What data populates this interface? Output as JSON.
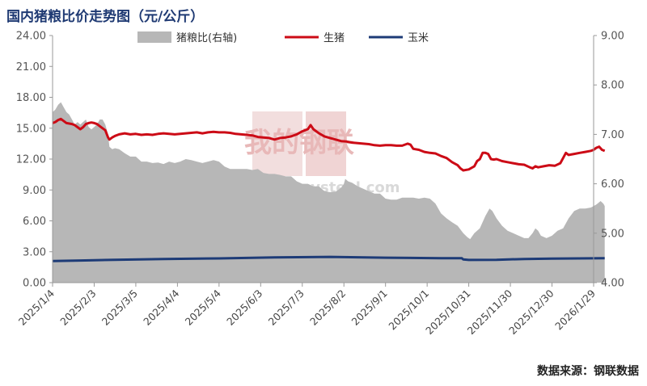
{
  "header": {
    "title": "国内猪粮比价走势图（元/公斤）"
  },
  "footer": {
    "source": "数据来源：钢联数据"
  },
  "watermark": {
    "brand": "我的钢联",
    "site": "mysteel.com"
  },
  "colors": {
    "area": "#b7b7b7",
    "hog": "#cc0b16",
    "corn": "#1d3b77",
    "title": "#1f3a73"
  },
  "chart_data": {
    "type": "line",
    "title": "国内猪粮比价走势图（元/公斤）",
    "x_ticks": [
      "2025/1/4",
      "2025/2/3",
      "2025/3/5",
      "2025/4/4",
      "2025/5/4",
      "2025/6/3",
      "2025/7/3",
      "2025/8/2",
      "2025/9/1",
      "2025/10/1",
      "2025/10/31",
      "2025/11/30",
      "2025/12/30",
      "2026/1/29"
    ],
    "y_left": {
      "range": [
        0,
        24
      ],
      "ticks": [
        "0.00",
        "3.00",
        "6.00",
        "9.00",
        "12.00",
        "15.00",
        "18.00",
        "21.00",
        "24.00"
      ]
    },
    "y_right": {
      "range": [
        4,
        9
      ],
      "ticks": [
        "4.00",
        "5.00",
        "6.00",
        "7.00",
        "8.00",
        "9.00"
      ]
    },
    "legend_position": "top",
    "series": [
      {
        "name": "猪粮比(右轴)",
        "type": "area",
        "axis": "right",
        "points": [
          [
            0,
            7.45
          ],
          [
            2,
            7.5
          ],
          [
            4,
            7.6
          ],
          [
            6,
            7.65
          ],
          [
            8,
            7.55
          ],
          [
            10,
            7.45
          ],
          [
            12,
            7.4
          ],
          [
            14,
            7.3
          ],
          [
            16,
            7.2
          ],
          [
            18,
            7.25
          ],
          [
            20,
            7.2
          ],
          [
            22,
            7.25
          ],
          [
            24,
            7.3
          ],
          [
            26,
            7.15
          ],
          [
            28,
            7.1
          ],
          [
            30,
            7.15
          ],
          [
            32,
            7.2
          ],
          [
            34,
            7.3
          ],
          [
            36,
            7.3
          ],
          [
            38,
            7.2
          ],
          [
            40,
            7.0
          ],
          [
            41,
            6.75
          ],
          [
            43,
            6.7
          ],
          [
            45,
            6.72
          ],
          [
            48,
            6.7
          ],
          [
            52,
            6.62
          ],
          [
            56,
            6.55
          ],
          [
            60,
            6.55
          ],
          [
            64,
            6.45
          ],
          [
            68,
            6.45
          ],
          [
            72,
            6.42
          ],
          [
            76,
            6.43
          ],
          [
            80,
            6.4
          ],
          [
            84,
            6.45
          ],
          [
            88,
            6.42
          ],
          [
            92,
            6.45
          ],
          [
            96,
            6.5
          ],
          [
            100,
            6.48
          ],
          [
            104,
            6.45
          ],
          [
            108,
            6.42
          ],
          [
            112,
            6.45
          ],
          [
            116,
            6.48
          ],
          [
            120,
            6.45
          ],
          [
            124,
            6.35
          ],
          [
            128,
            6.3
          ],
          [
            132,
            6.3
          ],
          [
            136,
            6.3
          ],
          [
            140,
            6.3
          ],
          [
            144,
            6.28
          ],
          [
            148,
            6.3
          ],
          [
            152,
            6.22
          ],
          [
            156,
            6.2
          ],
          [
            160,
            6.2
          ],
          [
            164,
            6.18
          ],
          [
            168,
            6.15
          ],
          [
            172,
            6.15
          ],
          [
            176,
            6.05
          ],
          [
            180,
            6.0
          ],
          [
            184,
            6.0
          ],
          [
            188,
            5.95
          ],
          [
            192,
            5.95
          ],
          [
            196,
            5.85
          ],
          [
            200,
            5.83
          ],
          [
            204,
            5.84
          ],
          [
            208,
            5.92
          ],
          [
            210,
            6.0
          ],
          [
            211,
            6.1
          ],
          [
            213,
            6.05
          ],
          [
            216,
            6.02
          ],
          [
            220,
            5.95
          ],
          [
            224,
            5.9
          ],
          [
            228,
            5.85
          ],
          [
            232,
            5.8
          ],
          [
            236,
            5.8
          ],
          [
            240,
            5.7
          ],
          [
            244,
            5.68
          ],
          [
            248,
            5.68
          ],
          [
            252,
            5.72
          ],
          [
            256,
            5.72
          ],
          [
            260,
            5.72
          ],
          [
            264,
            5.7
          ],
          [
            268,
            5.72
          ],
          [
            272,
            5.7
          ],
          [
            276,
            5.6
          ],
          [
            280,
            5.4
          ],
          [
            284,
            5.3
          ],
          [
            288,
            5.22
          ],
          [
            292,
            5.15
          ],
          [
            296,
            5.0
          ],
          [
            299,
            4.92
          ],
          [
            301,
            4.88
          ],
          [
            304,
            5.0
          ],
          [
            308,
            5.1
          ],
          [
            312,
            5.35
          ],
          [
            315,
            5.5
          ],
          [
            317,
            5.45
          ],
          [
            320,
            5.3
          ],
          [
            324,
            5.15
          ],
          [
            328,
            5.05
          ],
          [
            332,
            5.0
          ],
          [
            336,
            4.95
          ],
          [
            340,
            4.9
          ],
          [
            343,
            4.9
          ],
          [
            346,
            5.0
          ],
          [
            348,
            5.1
          ],
          [
            350,
            5.05
          ],
          [
            352,
            4.95
          ],
          [
            356,
            4.9
          ],
          [
            360,
            4.95
          ],
          [
            364,
            5.05
          ],
          [
            368,
            5.1
          ],
          [
            372,
            5.3
          ],
          [
            376,
            5.45
          ],
          [
            380,
            5.5
          ],
          [
            384,
            5.5
          ],
          [
            388,
            5.52
          ],
          [
            392,
            5.58
          ],
          [
            395,
            5.65
          ],
          [
            397,
            5.6
          ],
          [
            398,
            5.55
          ]
        ]
      },
      {
        "name": "生猪",
        "type": "line",
        "axis": "left",
        "points": [
          [
            0,
            15.5
          ],
          [
            2,
            15.6
          ],
          [
            4,
            15.8
          ],
          [
            6,
            15.9
          ],
          [
            8,
            15.7
          ],
          [
            10,
            15.5
          ],
          [
            12,
            15.45
          ],
          [
            14,
            15.4
          ],
          [
            16,
            15.3
          ],
          [
            18,
            15.1
          ],
          [
            20,
            14.9
          ],
          [
            22,
            15.1
          ],
          [
            24,
            15.4
          ],
          [
            26,
            15.5
          ],
          [
            28,
            15.55
          ],
          [
            30,
            15.5
          ],
          [
            32,
            15.4
          ],
          [
            34,
            15.2
          ],
          [
            36,
            15.0
          ],
          [
            38,
            14.8
          ],
          [
            40,
            14.1
          ],
          [
            41,
            13.9
          ],
          [
            43,
            14.1
          ],
          [
            45,
            14.25
          ],
          [
            48,
            14.4
          ],
          [
            52,
            14.5
          ],
          [
            56,
            14.4
          ],
          [
            60,
            14.45
          ],
          [
            64,
            14.35
          ],
          [
            68,
            14.4
          ],
          [
            72,
            14.35
          ],
          [
            76,
            14.45
          ],
          [
            80,
            14.5
          ],
          [
            84,
            14.45
          ],
          [
            88,
            14.4
          ],
          [
            92,
            14.45
          ],
          [
            96,
            14.5
          ],
          [
            100,
            14.55
          ],
          [
            104,
            14.6
          ],
          [
            108,
            14.5
          ],
          [
            112,
            14.6
          ],
          [
            116,
            14.65
          ],
          [
            120,
            14.6
          ],
          [
            124,
            14.6
          ],
          [
            128,
            14.55
          ],
          [
            132,
            14.45
          ],
          [
            136,
            14.4
          ],
          [
            140,
            14.35
          ],
          [
            144,
            14.3
          ],
          [
            148,
            14.15
          ],
          [
            152,
            14.1
          ],
          [
            156,
            14.05
          ],
          [
            160,
            13.9
          ],
          [
            164,
            14.05
          ],
          [
            168,
            14.1
          ],
          [
            172,
            14.2
          ],
          [
            176,
            14.4
          ],
          [
            180,
            14.7
          ],
          [
            184,
            14.9
          ],
          [
            186,
            15.3
          ],
          [
            188,
            14.9
          ],
          [
            192,
            14.5
          ],
          [
            196,
            14.2
          ],
          [
            200,
            14.05
          ],
          [
            204,
            13.9
          ],
          [
            208,
            13.75
          ],
          [
            212,
            13.7
          ],
          [
            216,
            13.6
          ],
          [
            220,
            13.55
          ],
          [
            224,
            13.5
          ],
          [
            228,
            13.45
          ],
          [
            232,
            13.35
          ],
          [
            236,
            13.3
          ],
          [
            240,
            13.35
          ],
          [
            244,
            13.35
          ],
          [
            248,
            13.3
          ],
          [
            252,
            13.3
          ],
          [
            256,
            13.5
          ],
          [
            258,
            13.4
          ],
          [
            260,
            13.0
          ],
          [
            264,
            12.9
          ],
          [
            268,
            12.7
          ],
          [
            272,
            12.6
          ],
          [
            276,
            12.55
          ],
          [
            280,
            12.3
          ],
          [
            284,
            12.1
          ],
          [
            288,
            11.7
          ],
          [
            292,
            11.4
          ],
          [
            294,
            11.1
          ],
          [
            296,
            10.9
          ],
          [
            300,
            11.0
          ],
          [
            304,
            11.3
          ],
          [
            306,
            11.8
          ],
          [
            308,
            12.0
          ],
          [
            310,
            12.6
          ],
          [
            312,
            12.6
          ],
          [
            314,
            12.5
          ],
          [
            316,
            12.0
          ],
          [
            318,
            11.95
          ],
          [
            320,
            12.0
          ],
          [
            324,
            11.8
          ],
          [
            328,
            11.7
          ],
          [
            332,
            11.6
          ],
          [
            336,
            11.5
          ],
          [
            340,
            11.45
          ],
          [
            344,
            11.2
          ],
          [
            346,
            11.1
          ],
          [
            348,
            11.3
          ],
          [
            350,
            11.2
          ],
          [
            354,
            11.3
          ],
          [
            358,
            11.4
          ],
          [
            362,
            11.35
          ],
          [
            366,
            11.6
          ],
          [
            368,
            12.1
          ],
          [
            370,
            12.6
          ],
          [
            372,
            12.4
          ],
          [
            376,
            12.5
          ],
          [
            380,
            12.6
          ],
          [
            384,
            12.7
          ],
          [
            388,
            12.8
          ],
          [
            390,
            12.9
          ],
          [
            392,
            13.1
          ],
          [
            394,
            13.2
          ],
          [
            396,
            12.9
          ],
          [
            398,
            12.8
          ]
        ]
      },
      {
        "name": "玉米",
        "type": "line",
        "axis": "left",
        "points": [
          [
            0,
            2.1
          ],
          [
            20,
            2.15
          ],
          [
            40,
            2.2
          ],
          [
            80,
            2.3
          ],
          [
            120,
            2.35
          ],
          [
            160,
            2.45
          ],
          [
            200,
            2.5
          ],
          [
            240,
            2.42
          ],
          [
            280,
            2.38
          ],
          [
            295,
            2.38
          ],
          [
            296,
            2.25
          ],
          [
            300,
            2.2
          ],
          [
            320,
            2.22
          ],
          [
            340,
            2.3
          ],
          [
            360,
            2.33
          ],
          [
            398,
            2.37
          ]
        ]
      }
    ]
  }
}
